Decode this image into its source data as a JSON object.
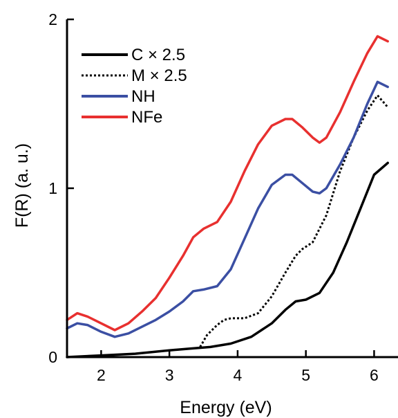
{
  "chart_data": {
    "type": "line",
    "title": "",
    "xlabel": "Energy (eV)",
    "ylabel": "F(R) (a. u.)",
    "xlim": [
      1.5,
      6.35
    ],
    "ylim": [
      0,
      2
    ],
    "xticks": [
      2,
      3,
      4,
      5,
      6
    ],
    "yticks": [
      0,
      1,
      2
    ],
    "grid": false,
    "legend_position": "top-left",
    "series": [
      {
        "name": "C × 2.5",
        "color": "#000000",
        "style": "solid",
        "x": [
          1.5,
          2.0,
          2.5,
          3.0,
          3.3,
          3.6,
          3.9,
          4.2,
          4.5,
          4.7,
          4.85,
          5.0,
          5.2,
          5.4,
          5.6,
          5.8,
          6.0,
          6.2
        ],
        "y": [
          0.0,
          0.01,
          0.02,
          0.04,
          0.05,
          0.06,
          0.08,
          0.12,
          0.2,
          0.28,
          0.33,
          0.34,
          0.38,
          0.5,
          0.68,
          0.88,
          1.08,
          1.15
        ]
      },
      {
        "name": "M × 2.5",
        "color": "#000000",
        "style": "dotted",
        "x": [
          3.45,
          3.55,
          3.7,
          3.8,
          3.9,
          4.1,
          4.3,
          4.5,
          4.7,
          4.85,
          4.95,
          5.1,
          5.3,
          5.5,
          5.7,
          5.9,
          6.05,
          6.2
        ],
        "y": [
          0.06,
          0.13,
          0.19,
          0.22,
          0.23,
          0.23,
          0.26,
          0.36,
          0.5,
          0.6,
          0.64,
          0.68,
          0.84,
          1.1,
          1.3,
          1.46,
          1.55,
          1.48
        ]
      },
      {
        "name": "NH",
        "color": "#3b4fa3",
        "style": "solid",
        "x": [
          1.5,
          1.65,
          1.8,
          2.0,
          2.2,
          2.4,
          2.6,
          2.8,
          3.0,
          3.2,
          3.35,
          3.5,
          3.7,
          3.9,
          4.1,
          4.3,
          4.5,
          4.7,
          4.8,
          4.95,
          5.1,
          5.2,
          5.3,
          5.5,
          5.7,
          5.9,
          6.05,
          6.2
        ],
        "y": [
          0.17,
          0.2,
          0.19,
          0.15,
          0.12,
          0.14,
          0.18,
          0.22,
          0.27,
          0.33,
          0.39,
          0.4,
          0.42,
          0.52,
          0.7,
          0.88,
          1.02,
          1.08,
          1.08,
          1.03,
          0.98,
          0.97,
          1.0,
          1.14,
          1.3,
          1.5,
          1.63,
          1.6
        ]
      },
      {
        "name": "NFe",
        "color": "#e8302f",
        "style": "solid",
        "x": [
          1.5,
          1.65,
          1.8,
          2.0,
          2.2,
          2.4,
          2.6,
          2.8,
          3.0,
          3.2,
          3.35,
          3.5,
          3.7,
          3.9,
          4.1,
          4.3,
          4.5,
          4.7,
          4.8,
          4.95,
          5.1,
          5.2,
          5.3,
          5.5,
          5.7,
          5.9,
          6.05,
          6.2
        ],
        "y": [
          0.22,
          0.26,
          0.24,
          0.2,
          0.16,
          0.2,
          0.27,
          0.35,
          0.47,
          0.6,
          0.71,
          0.76,
          0.8,
          0.92,
          1.1,
          1.26,
          1.37,
          1.41,
          1.41,
          1.36,
          1.3,
          1.27,
          1.3,
          1.45,
          1.63,
          1.8,
          1.9,
          1.87
        ]
      }
    ]
  },
  "legend": {
    "items": [
      {
        "label": "C × 2.5",
        "color": "#000000",
        "style": "solid"
      },
      {
        "label": "M × 2.5",
        "color": "#000000",
        "style": "dotted"
      },
      {
        "label": "NH",
        "color": "#3b4fa3",
        "style": "solid"
      },
      {
        "label": "NFe",
        "color": "#e8302f",
        "style": "solid"
      }
    ]
  }
}
